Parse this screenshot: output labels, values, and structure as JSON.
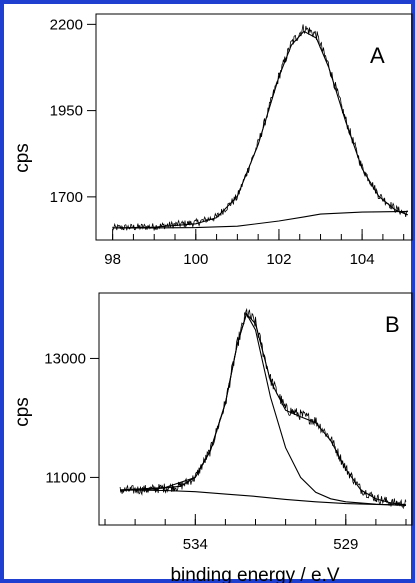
{
  "border_color": "#1f3fd0",
  "chart_data": [
    {
      "type": "line",
      "panel_label": "A",
      "ylabel": "cps",
      "xlabel": "",
      "x_ticks": [
        98,
        100,
        102,
        104
      ],
      "y_ticks": [
        1700,
        1950,
        2200
      ],
      "xlim": [
        97.6,
        105.2
      ],
      "ylim": [
        1575,
        2230
      ],
      "x_reversed": false,
      "series": [
        {
          "kind": "measured",
          "x": [
            98.0,
            99.0,
            100.0,
            100.5,
            101.0,
            101.5,
            102.0,
            102.3,
            102.6,
            102.9,
            103.2,
            103.6,
            104.0,
            104.4,
            104.8,
            105.1
          ],
          "values": [
            1610,
            1614,
            1625,
            1642,
            1700,
            1855,
            2050,
            2145,
            2190,
            2170,
            2080,
            1925,
            1785,
            1705,
            1665,
            1650
          ]
        },
        {
          "kind": "fit",
          "x": [
            98.0,
            99.0,
            100.0,
            100.5,
            101.0,
            101.5,
            102.0,
            102.3,
            102.6,
            102.9,
            103.2,
            103.6,
            104.0,
            104.4,
            104.8,
            105.1
          ],
          "values": [
            1610,
            1612,
            1622,
            1640,
            1702,
            1852,
            2048,
            2140,
            2180,
            2160,
            2075,
            1920,
            1782,
            1702,
            1662,
            1648
          ]
        },
        {
          "kind": "background",
          "x": [
            98.0,
            99.0,
            100.0,
            101.0,
            102.0,
            102.6,
            103.0,
            104.0,
            105.1
          ],
          "values": [
            1610,
            1610,
            1611,
            1615,
            1630,
            1642,
            1650,
            1656,
            1658
          ]
        }
      ]
    },
    {
      "type": "line",
      "panel_label": "B",
      "ylabel": "cps",
      "xlabel": "binding energy / e.V",
      "x_ticks": [
        534,
        529
      ],
      "y_ticks": [
        11000,
        13000
      ],
      "xlim": [
        537.2,
        526.8
      ],
      "ylim": [
        10200,
        14100
      ],
      "x_reversed": true,
      "series": [
        {
          "kind": "measured",
          "x": [
            536.5,
            535.5,
            534.5,
            534.0,
            533.5,
            533.0,
            532.6,
            532.3,
            532.0,
            531.5,
            531.0,
            530.5,
            530.0,
            529.5,
            529.0,
            528.5,
            528.0,
            527.5,
            527.0
          ],
          "values": [
            10780,
            10800,
            10850,
            11000,
            11450,
            12250,
            13250,
            13780,
            13600,
            12650,
            12150,
            12050,
            11950,
            11650,
            11150,
            10800,
            10650,
            10580,
            10550
          ]
        },
        {
          "kind": "fit",
          "x": [
            536.5,
            535.5,
            534.5,
            534.0,
            533.5,
            533.0,
            532.6,
            532.3,
            532.0,
            531.5,
            531.0,
            530.5,
            530.0,
            529.5,
            529.0,
            528.5,
            528.0,
            527.5,
            527.0
          ],
          "values": [
            10780,
            10800,
            10850,
            11000,
            11450,
            12250,
            13250,
            13750,
            13580,
            12620,
            12130,
            12020,
            11920,
            11620,
            11140,
            10790,
            10640,
            10570,
            10540
          ]
        },
        {
          "kind": "component",
          "x": [
            536.5,
            535.0,
            534.0,
            533.5,
            533.0,
            532.6,
            532.3,
            532.0,
            531.5,
            531.0,
            530.5,
            530.0,
            529.5,
            529.0,
            528.0,
            527.0
          ],
          "values": [
            10790,
            10830,
            11000,
            11450,
            12250,
            13250,
            13750,
            13480,
            12350,
            11500,
            11000,
            10750,
            10640,
            10590,
            10550,
            10530
          ]
        },
        {
          "kind": "background",
          "x": [
            536.5,
            535.0,
            534.0,
            533.0,
            532.0,
            531.0,
            530.0,
            529.0,
            528.0,
            527.0
          ],
          "values": [
            10790,
            10780,
            10760,
            10720,
            10680,
            10630,
            10590,
            10560,
            10545,
            10535
          ]
        }
      ]
    }
  ]
}
